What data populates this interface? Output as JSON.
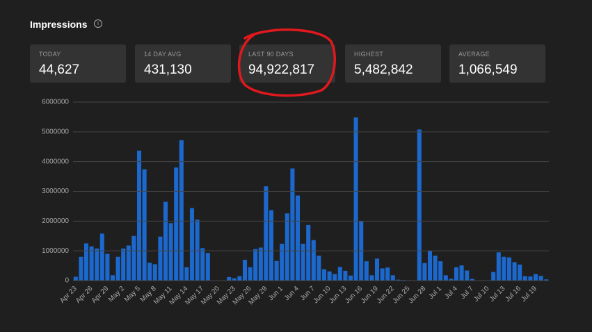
{
  "header": {
    "title": "Impressions"
  },
  "stats": [
    {
      "label": "TODAY",
      "value": "44,627"
    },
    {
      "label": "14 DAY AVG",
      "value": "431,130"
    },
    {
      "label": "LAST 90 DAYS",
      "value": "94,922,817"
    },
    {
      "label": "HIGHEST",
      "value": "5,482,842"
    },
    {
      "label": "AVERAGE",
      "value": "1,066,549"
    }
  ],
  "chart_data": {
    "type": "bar",
    "color": "#1c68cc",
    "grid": true,
    "categories": [
      "Apr 23",
      null,
      null,
      "Apr 26",
      null,
      null,
      "Apr 29",
      null,
      null,
      "May 2",
      null,
      null,
      "May 5",
      null,
      null,
      "May 8",
      null,
      null,
      "May 11",
      null,
      null,
      "May 14",
      null,
      null,
      "May 17",
      null,
      null,
      "May 20",
      null,
      null,
      "May 23",
      null,
      null,
      "May 26",
      null,
      null,
      "May 29",
      null,
      null,
      "Jun 1",
      null,
      null,
      "Jun 4",
      null,
      null,
      "Jun 7",
      null,
      null,
      "Jun 10",
      null,
      null,
      "Jun 13",
      null,
      null,
      "Jun 16",
      null,
      null,
      "Jun 19",
      null,
      null,
      "Jun 22",
      null,
      null,
      "Jun 25",
      null,
      null,
      "Jun 28",
      null,
      null,
      "Jul 1",
      null,
      null,
      "Jul 4",
      null,
      null,
      "Jul 7",
      null,
      null,
      "Jul 10",
      null,
      null,
      "Jul 13",
      null,
      null,
      "Jul 16",
      null,
      null,
      "Jul 19",
      null,
      null
    ],
    "values": [
      130000,
      800000,
      1250000,
      1150000,
      1080000,
      1580000,
      900000,
      180000,
      800000,
      1080000,
      1180000,
      1500000,
      4370000,
      3740000,
      600000,
      550000,
      1480000,
      2650000,
      1930000,
      3800000,
      4720000,
      450000,
      2440000,
      2050000,
      1090000,
      930000,
      0,
      0,
      0,
      120000,
      80000,
      150000,
      700000,
      450000,
      1060000,
      1110000,
      3170000,
      2370000,
      660000,
      1240000,
      2260000,
      3770000,
      2860000,
      1240000,
      1870000,
      1360000,
      840000,
      380000,
      310000,
      220000,
      460000,
      330000,
      170000,
      5482842,
      2000000,
      650000,
      180000,
      740000,
      410000,
      440000,
      180000,
      30000,
      20000,
      0,
      0,
      5080000,
      590000,
      1000000,
      840000,
      650000,
      180000,
      60000,
      450000,
      510000,
      340000,
      60000,
      0,
      0,
      0,
      290000,
      950000,
      800000,
      780000,
      620000,
      540000,
      150000,
      140000,
      220000,
      160000,
      40000
    ],
    "ylim": [
      0,
      6000000
    ],
    "yticks": [
      0,
      1000000,
      2000000,
      3000000,
      4000000,
      5000000,
      6000000
    ]
  }
}
